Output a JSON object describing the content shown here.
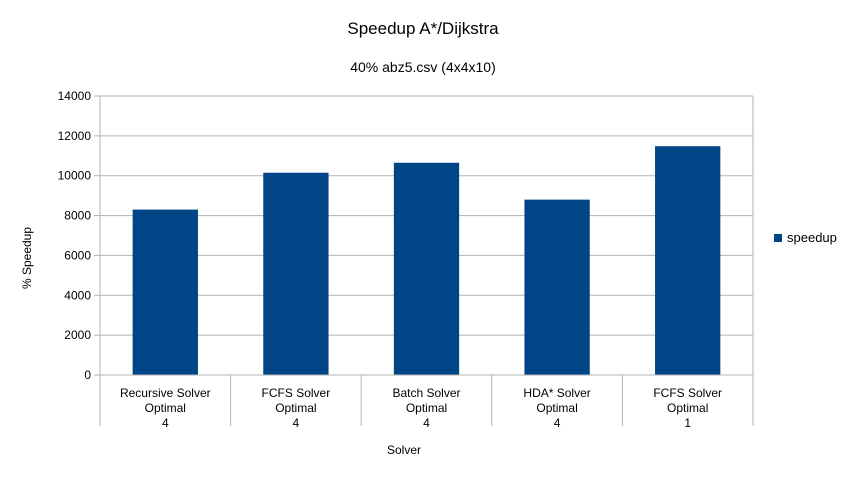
{
  "chart_data": {
    "type": "bar",
    "title": "Speedup A*/Dijkstra",
    "subtitle": "40% abz5.csv (4x4x10)",
    "xlabel": "Solver",
    "ylabel": "% Speedup",
    "ylim": [
      0,
      14000
    ],
    "yticks": [
      "0",
      "2000",
      "4000",
      "6000",
      "8000",
      "10000",
      "12000",
      "14000"
    ],
    "grid": true,
    "legend_position": "right",
    "categories": [
      [
        "Recursive Solver",
        "Optimal",
        "4"
      ],
      [
        "FCFS Solver",
        "Optimal",
        "4"
      ],
      [
        "Batch Solver",
        "Optimal",
        "4"
      ],
      [
        "HDA* Solver",
        "Optimal",
        "4"
      ],
      [
        "FCFS Solver",
        "Optimal",
        "1"
      ]
    ],
    "series": [
      {
        "name": "speedup",
        "color": "#004586",
        "values": [
          8300,
          10150,
          10650,
          8800,
          11480
        ]
      }
    ]
  }
}
